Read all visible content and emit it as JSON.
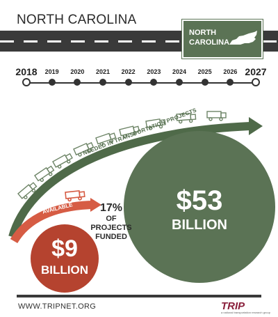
{
  "header": {
    "state_title": "NORTH CAROLINA",
    "badge_line1": "NORTH",
    "badge_line2": "CAROLINA"
  },
  "timeline": {
    "years": [
      "2018",
      "2019",
      "2020",
      "2021",
      "2022",
      "2023",
      "2024",
      "2025",
      "2026",
      "2027"
    ]
  },
  "labels": {
    "needed": "NEEDED IN TRANSPORTATION PROJECTS",
    "available": "AVAILABLE"
  },
  "needed": {
    "amount": "$53",
    "unit": "BILLION"
  },
  "available": {
    "amount": "$9",
    "unit": "BILLION"
  },
  "funded": {
    "percent": "17%",
    "line1": "OF",
    "line2": "PROJECTS",
    "line3": "FUNDED"
  },
  "footer": {
    "website": "WWW.TRIPNET.ORG",
    "logo": "TRIP",
    "logo_sub": "a national transportation research group"
  },
  "colors": {
    "green": "#5b7355",
    "red": "#b5432f",
    "dark": "#3a3a3a"
  }
}
